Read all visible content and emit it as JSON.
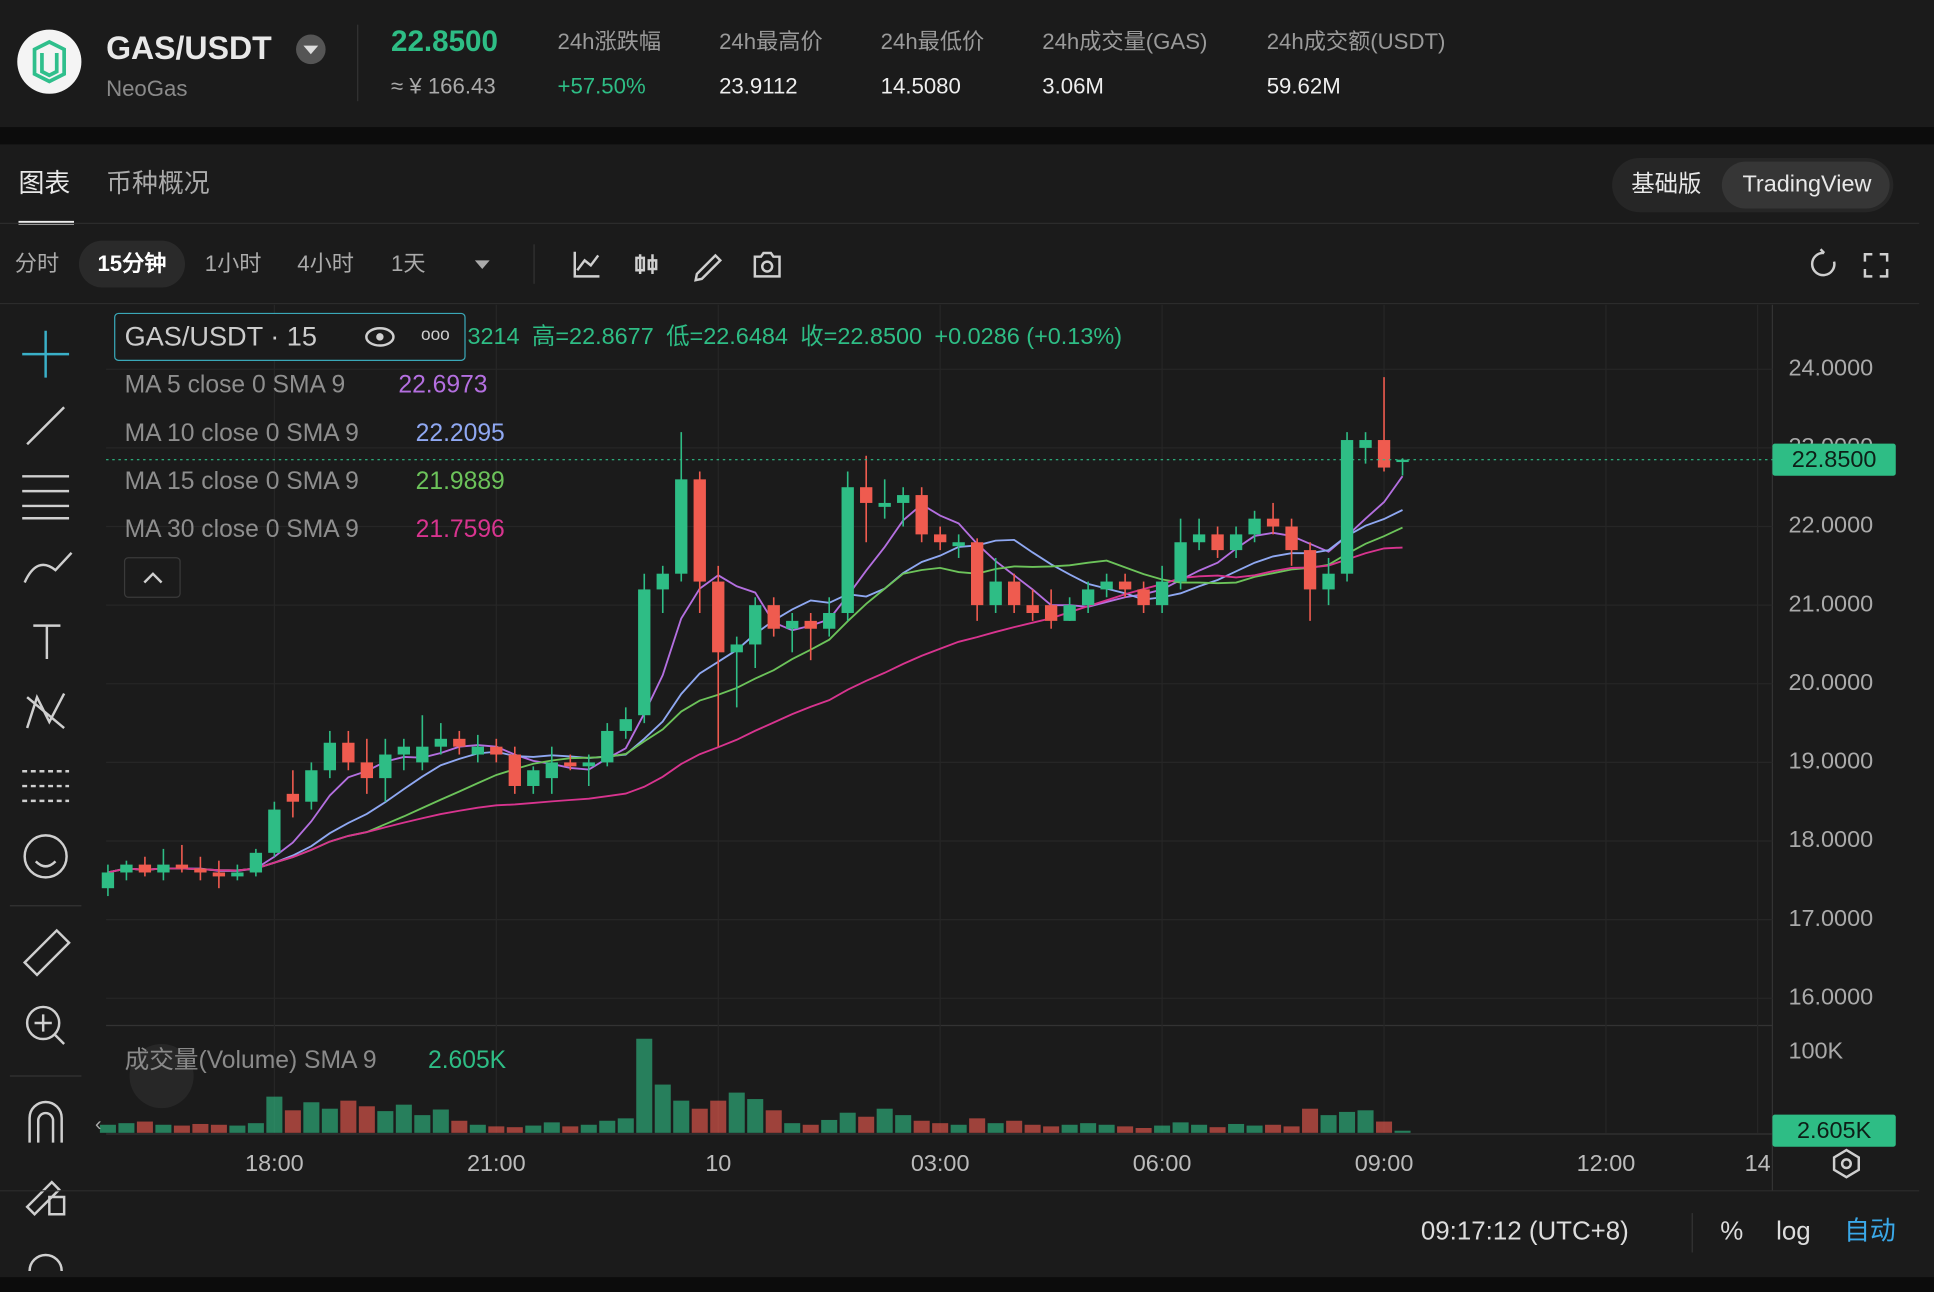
{
  "header": {
    "symbol": "GAS/USDT",
    "name": "NeoGas",
    "price": "22.8500",
    "price_cny": "≈ ¥ 166.43",
    "stats": [
      {
        "label": "24h涨跌幅",
        "value": "+57.50%"
      },
      {
        "label": "24h最高价",
        "value": "23.9112"
      },
      {
        "label": "24h最低价",
        "value": "14.5080"
      },
      {
        "label": "24h成交量(GAS)",
        "value": "3.06M"
      },
      {
        "label": "24h成交额(USDT)",
        "value": "59.62M"
      }
    ]
  },
  "tabs": [
    "图表",
    "币种概况"
  ],
  "views": [
    "基础版",
    "TradingView"
  ],
  "intervals": [
    "分时",
    "15分钟",
    "1小时",
    "4小时",
    "1天"
  ],
  "chart_data": {
    "type": "candlestick",
    "legend_title": "GAS/USDT · 15",
    "ohlc_legend": [
      "3214",
      "高=22.8677",
      "低=22.6484",
      "收=22.8500",
      "+0.0286 (+0.13%)"
    ],
    "up_color": "#2ebd85",
    "down_color": "#ef5b4f",
    "candles": [
      [
        17.4,
        17.7,
        17.3,
        17.6
      ],
      [
        17.6,
        17.75,
        17.5,
        17.7
      ],
      [
        17.7,
        17.8,
        17.55,
        17.6
      ],
      [
        17.6,
        17.9,
        17.5,
        17.7
      ],
      [
        17.7,
        17.95,
        17.6,
        17.65
      ],
      [
        17.65,
        17.8,
        17.5,
        17.6
      ],
      [
        17.6,
        17.75,
        17.4,
        17.55
      ],
      [
        17.55,
        17.7,
        17.5,
        17.6
      ],
      [
        17.6,
        17.9,
        17.55,
        17.85
      ],
      [
        17.85,
        18.5,
        17.8,
        18.4
      ],
      [
        18.6,
        18.9,
        18.3,
        18.5
      ],
      [
        18.5,
        19.0,
        18.4,
        18.9
      ],
      [
        18.9,
        19.4,
        18.8,
        19.25
      ],
      [
        19.25,
        19.4,
        18.9,
        19.0
      ],
      [
        19.0,
        19.3,
        18.6,
        18.8
      ],
      [
        18.8,
        19.3,
        18.5,
        19.1
      ],
      [
        19.1,
        19.3,
        18.9,
        19.2
      ],
      [
        19.0,
        19.6,
        18.9,
        19.2
      ],
      [
        19.2,
        19.5,
        19.1,
        19.3
      ],
      [
        19.3,
        19.4,
        19.1,
        19.2
      ],
      [
        19.1,
        19.35,
        19.0,
        19.2
      ],
      [
        19.2,
        19.3,
        19.0,
        19.1
      ],
      [
        19.1,
        19.2,
        18.6,
        18.7
      ],
      [
        18.7,
        18.95,
        18.6,
        18.9
      ],
      [
        18.8,
        19.2,
        18.6,
        19.0
      ],
      [
        19.0,
        19.1,
        18.9,
        18.95
      ],
      [
        18.95,
        19.1,
        18.7,
        19.0
      ],
      [
        19.0,
        19.5,
        18.95,
        19.4
      ],
      [
        19.4,
        19.7,
        19.3,
        19.55
      ],
      [
        19.6,
        21.4,
        19.5,
        21.2
      ],
      [
        21.2,
        21.5,
        20.9,
        21.4
      ],
      [
        21.4,
        23.2,
        21.3,
        22.6
      ],
      [
        22.6,
        22.7,
        20.9,
        21.3
      ],
      [
        21.3,
        21.5,
        19.2,
        20.4
      ],
      [
        20.4,
        20.6,
        19.7,
        20.5
      ],
      [
        20.5,
        21.1,
        20.2,
        21.0
      ],
      [
        21.0,
        21.1,
        20.6,
        20.7
      ],
      [
        20.7,
        20.9,
        20.4,
        20.8
      ],
      [
        20.8,
        20.9,
        20.3,
        20.7
      ],
      [
        20.7,
        21.1,
        20.6,
        20.9
      ],
      [
        20.9,
        22.7,
        20.8,
        22.5
      ],
      [
        22.5,
        22.9,
        21.8,
        22.3
      ],
      [
        22.25,
        22.6,
        22.1,
        22.3
      ],
      [
        22.3,
        22.5,
        22.0,
        22.4
      ],
      [
        22.4,
        22.5,
        21.8,
        21.9
      ],
      [
        21.9,
        22.0,
        21.7,
        21.8
      ],
      [
        21.75,
        21.9,
        21.6,
        21.8
      ],
      [
        21.8,
        21.85,
        20.8,
        21.0
      ],
      [
        21.0,
        21.6,
        20.9,
        21.3
      ],
      [
        21.3,
        21.4,
        20.9,
        21.0
      ],
      [
        21.0,
        21.2,
        20.8,
        20.9
      ],
      [
        21.0,
        21.2,
        20.7,
        20.8
      ],
      [
        20.8,
        21.1,
        20.8,
        21.0
      ],
      [
        21.0,
        21.3,
        20.9,
        21.2
      ],
      [
        21.2,
        21.4,
        21.1,
        21.3
      ],
      [
        21.3,
        21.4,
        21.1,
        21.2
      ],
      [
        21.2,
        21.3,
        20.9,
        21.0
      ],
      [
        21.0,
        21.5,
        20.9,
        21.3
      ],
      [
        21.3,
        22.1,
        21.2,
        21.8
      ],
      [
        21.8,
        22.1,
        21.7,
        21.9
      ],
      [
        21.9,
        22.0,
        21.6,
        21.7
      ],
      [
        21.7,
        22.0,
        21.6,
        21.9
      ],
      [
        21.9,
        22.2,
        21.8,
        22.1
      ],
      [
        22.1,
        22.3,
        21.9,
        22.0
      ],
      [
        22.0,
        22.1,
        21.5,
        21.7
      ],
      [
        21.7,
        21.8,
        20.8,
        21.2
      ],
      [
        21.2,
        21.6,
        21.0,
        21.4
      ],
      [
        21.4,
        23.2,
        21.3,
        23.1
      ],
      [
        23.0,
        23.2,
        22.8,
        23.1
      ],
      [
        23.1,
        23.9,
        22.7,
        22.75
      ],
      [
        22.82,
        22.8677,
        22.6484,
        22.85
      ]
    ],
    "ma": [
      {
        "name": "MA 5 close 0 SMA 9",
        "value": 22.6973,
        "color": "#b46fe0"
      },
      {
        "name": "MA 10 close 0 SMA 9",
        "value": 22.2095,
        "color": "#8fa8f2"
      },
      {
        "name": "MA 15 close 0 SMA 9",
        "value": 21.9889,
        "color": "#6cc35a"
      },
      {
        "name": "MA 30 close 0 SMA 9",
        "value": 21.7596,
        "color": "#d8348f"
      }
    ],
    "xlim": [
      -0.1,
      90
    ],
    "ylim": [
      15.67,
      24.82
    ],
    "yticks": [
      {
        "value": 16,
        "label": "16.0000"
      },
      {
        "value": 17,
        "label": "17.0000"
      },
      {
        "value": 18,
        "label": "18.0000"
      },
      {
        "value": 19,
        "label": "19.0000"
      },
      {
        "value": 20,
        "label": "20.0000"
      },
      {
        "value": 21,
        "label": "21.0000"
      },
      {
        "value": 22,
        "label": "22.0000"
      },
      {
        "value": 23,
        "label": "23.0000"
      },
      {
        "value": 24,
        "label": "24.0000"
      }
    ],
    "xticks": [
      {
        "value": 9,
        "label": "18:00"
      },
      {
        "value": 21,
        "label": "21:00"
      },
      {
        "value": 33,
        "label": "10"
      },
      {
        "value": 45,
        "label": "03:00"
      },
      {
        "value": 57,
        "label": "06:00"
      },
      {
        "value": 69,
        "label": "09:00"
      },
      {
        "value": 81,
        "label": "12:00"
      },
      {
        "value": 89.2,
        "label": "14"
      }
    ],
    "volume": {
      "name": "成交量(Volume) SMA 9",
      "value_label": "2.605K",
      "ylim": [
        0,
        132
      ],
      "yticks": [
        {
          "value": 100,
          "label": "100K"
        }
      ],
      "values": [
        10,
        12,
        14,
        10,
        9,
        11,
        10,
        9,
        12,
        45,
        28,
        38,
        30,
        40,
        33,
        27,
        35,
        22,
        29,
        15,
        10,
        8,
        7,
        9,
        13,
        8,
        10,
        15,
        18,
        117,
        60,
        40,
        30,
        40,
        50,
        42,
        28,
        12,
        10,
        16,
        25,
        20,
        30,
        22,
        15,
        12,
        10,
        18,
        12,
        15,
        10,
        8,
        10,
        12,
        10,
        8,
        6,
        9,
        13,
        10,
        7,
        11,
        9,
        10,
        8,
        30,
        22,
        26,
        28,
        14,
        2.605
      ]
    }
  },
  "footer": {
    "time": "09:17:12 (UTC+8)",
    "options": [
      "%",
      "log",
      "自动"
    ]
  }
}
